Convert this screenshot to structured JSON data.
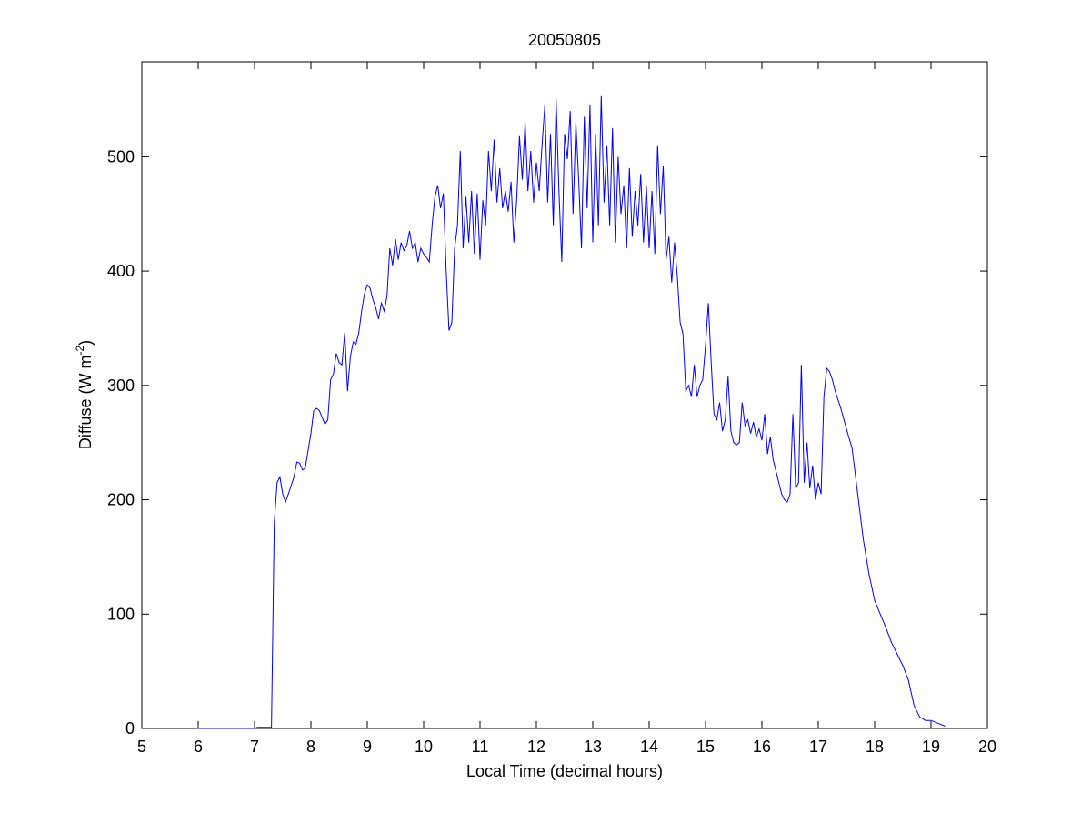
{
  "chart_data": {
    "type": "line",
    "title": "20050805",
    "xlabel": "Local Time (decimal hours)",
    "ylabel": {
      "text": "Diffuse (W m",
      "superscript": "-2",
      "suffix": ")"
    },
    "xlim": [
      5,
      20
    ],
    "xticks": [
      5,
      6,
      7,
      8,
      9,
      10,
      11,
      12,
      13,
      14,
      15,
      16,
      17,
      18,
      19,
      20
    ],
    "ylim": [
      0,
      583
    ],
    "yticks": [
      0,
      100,
      200,
      300,
      400,
      500
    ],
    "series": [
      {
        "color": "#0000ff",
        "x": [
          5.95,
          7.0,
          7.05,
          7.3,
          7.35,
          7.4,
          7.45,
          7.5,
          7.55,
          7.6,
          7.7,
          7.75,
          7.8,
          7.85,
          7.9,
          8.0,
          8.05,
          8.1,
          8.15,
          8.2,
          8.25,
          8.3,
          8.35,
          8.4,
          8.45,
          8.5,
          8.55,
          8.6,
          8.65,
          8.7,
          8.75,
          8.8,
          8.85,
          8.9,
          8.95,
          9.0,
          9.05,
          9.1,
          9.15,
          9.2,
          9.25,
          9.3,
          9.35,
          9.4,
          9.45,
          9.5,
          9.55,
          9.6,
          9.65,
          9.7,
          9.75,
          9.8,
          9.85,
          9.9,
          9.95,
          10.0,
          10.05,
          10.1,
          10.15,
          10.2,
          10.25,
          10.3,
          10.35,
          10.4,
          10.45,
          10.5,
          10.55,
          10.6,
          10.65,
          10.7,
          10.75,
          10.8,
          10.85,
          10.9,
          10.95,
          11.0,
          11.05,
          11.1,
          11.15,
          11.2,
          11.25,
          11.3,
          11.35,
          11.4,
          11.45,
          11.5,
          11.55,
          11.6,
          11.65,
          11.7,
          11.75,
          11.8,
          11.85,
          11.9,
          11.95,
          12.0,
          12.05,
          12.1,
          12.15,
          12.2,
          12.25,
          12.3,
          12.35,
          12.4,
          12.45,
          12.5,
          12.55,
          12.6,
          12.65,
          12.7,
          12.75,
          12.8,
          12.85,
          12.9,
          12.95,
          13.0,
          13.05,
          13.1,
          13.15,
          13.2,
          13.25,
          13.3,
          13.35,
          13.4,
          13.45,
          13.5,
          13.55,
          13.6,
          13.65,
          13.7,
          13.75,
          13.8,
          13.85,
          13.9,
          13.95,
          14.0,
          14.05,
          14.1,
          14.15,
          14.2,
          14.25,
          14.3,
          14.35,
          14.4,
          14.45,
          14.5,
          14.55,
          14.6,
          14.65,
          14.7,
          14.75,
          14.8,
          14.85,
          14.9,
          14.95,
          15.0,
          15.05,
          15.1,
          15.15,
          15.2,
          15.25,
          15.3,
          15.35,
          15.4,
          15.45,
          15.5,
          15.55,
          15.6,
          15.65,
          15.7,
          15.75,
          15.8,
          15.85,
          15.9,
          15.95,
          16.0,
          16.05,
          16.1,
          16.15,
          16.2,
          16.25,
          16.3,
          16.35,
          16.4,
          16.45,
          16.5,
          16.55,
          16.6,
          16.65,
          16.7,
          16.75,
          16.8,
          16.85,
          16.9,
          16.95,
          17.0,
          17.05,
          17.1,
          17.15,
          17.2,
          17.25,
          17.3,
          17.4,
          17.5,
          17.6,
          17.7,
          17.8,
          17.9,
          18.0,
          18.1,
          18.2,
          18.3,
          18.4,
          18.5,
          18.6,
          18.7,
          18.8,
          18.9,
          19.0,
          19.1,
          19.25
        ],
        "values": [
          0,
          0,
          1,
          1,
          180,
          215,
          220,
          205,
          198,
          205,
          220,
          233,
          232,
          226,
          228,
          258,
          278,
          280,
          278,
          272,
          266,
          270,
          305,
          310,
          328,
          320,
          318,
          346,
          295,
          325,
          338,
          336,
          346,
          365,
          380,
          388,
          385,
          375,
          368,
          358,
          372,
          365,
          378,
          420,
          405,
          428,
          410,
          425,
          418,
          422,
          435,
          420,
          425,
          408,
          420,
          415,
          412,
          408,
          440,
          465,
          475,
          455,
          468,
          400,
          348,
          355,
          420,
          440,
          505,
          420,
          465,
          425,
          470,
          415,
          468,
          410,
          462,
          440,
          505,
          470,
          515,
          460,
          490,
          455,
          470,
          452,
          478,
          425,
          462,
          518,
          480,
          530,
          470,
          505,
          460,
          495,
          470,
          510,
          545,
          460,
          520,
          440,
          550,
          470,
          408,
          520,
          498,
          540,
          450,
          530,
          480,
          420,
          535,
          455,
          545,
          425,
          520,
          440,
          553,
          460,
          510,
          440,
          525,
          425,
          500,
          450,
          475,
          420,
          490,
          430,
          470,
          440,
          485,
          425,
          475,
          420,
          470,
          415,
          510,
          450,
          492,
          410,
          430,
          390,
          425,
          395,
          355,
          345,
          295,
          300,
          290,
          318,
          290,
          300,
          305,
          335,
          372,
          320,
          275,
          270,
          285,
          260,
          270,
          308,
          260,
          250,
          248,
          250,
          285,
          265,
          270,
          258,
          268,
          255,
          262,
          252,
          275,
          240,
          255,
          235,
          225,
          215,
          205,
          200,
          198,
          205,
          275,
          210,
          215,
          318,
          215,
          250,
          210,
          230,
          200,
          215,
          205,
          290,
          315,
          312,
          305,
          295,
          280,
          262,
          245,
          205,
          165,
          135,
          112,
          100,
          88,
          75,
          65,
          55,
          42,
          20,
          10,
          7,
          7,
          5,
          2
        ]
      }
    ]
  }
}
